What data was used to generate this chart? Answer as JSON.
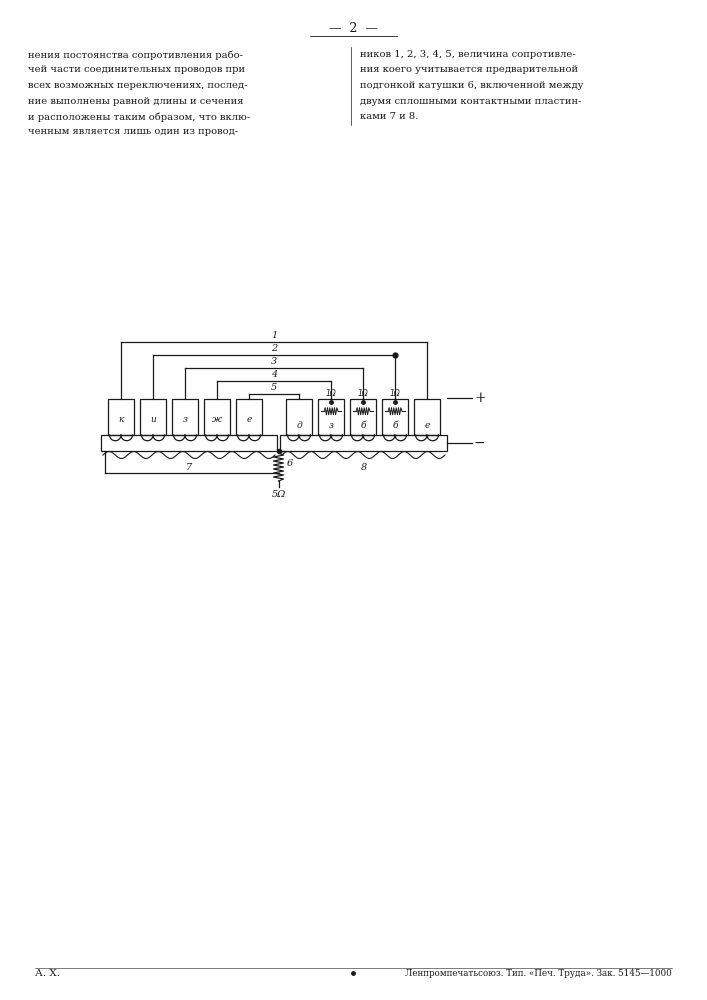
{
  "page_number": "2",
  "text_left": [
    "нения постоянства сопротивления рабо-",
    "чей части соединительных проводов при",
    "всех возможных переключениях, послед-",
    "ние выполнены равной длины и сечения",
    "и расположены таким образом, что вклю-",
    "ченным является лишь один из провод-"
  ],
  "text_right": [
    "ников 1, 2, 3, 4, 5, величина сопротивле-",
    "ния коего учитывается предварительной",
    "подгонкой катушки 6, включенной между",
    "двумя сплошными контактными пластин-",
    "ками 7 и 8."
  ],
  "bottom_left": "А. Х.",
  "bottom_right": "Ленпромпечатьсоюз. Тип. «Печ. Труда». Зак. 5145—1000",
  "bg_color": "#ffffff",
  "line_color": "#1a1a1a",
  "left_labels": [
    "к",
    "и",
    "з",
    "ж",
    "е"
  ],
  "right_labels": [
    "д",
    "з",
    "б",
    "б",
    "е"
  ],
  "wire_labels": [
    "1",
    "2",
    "3",
    "4",
    "5"
  ],
  "coil_label": "6",
  "coil_value": "5Ω",
  "plate_left_label": "7",
  "plate_right_label": "8"
}
